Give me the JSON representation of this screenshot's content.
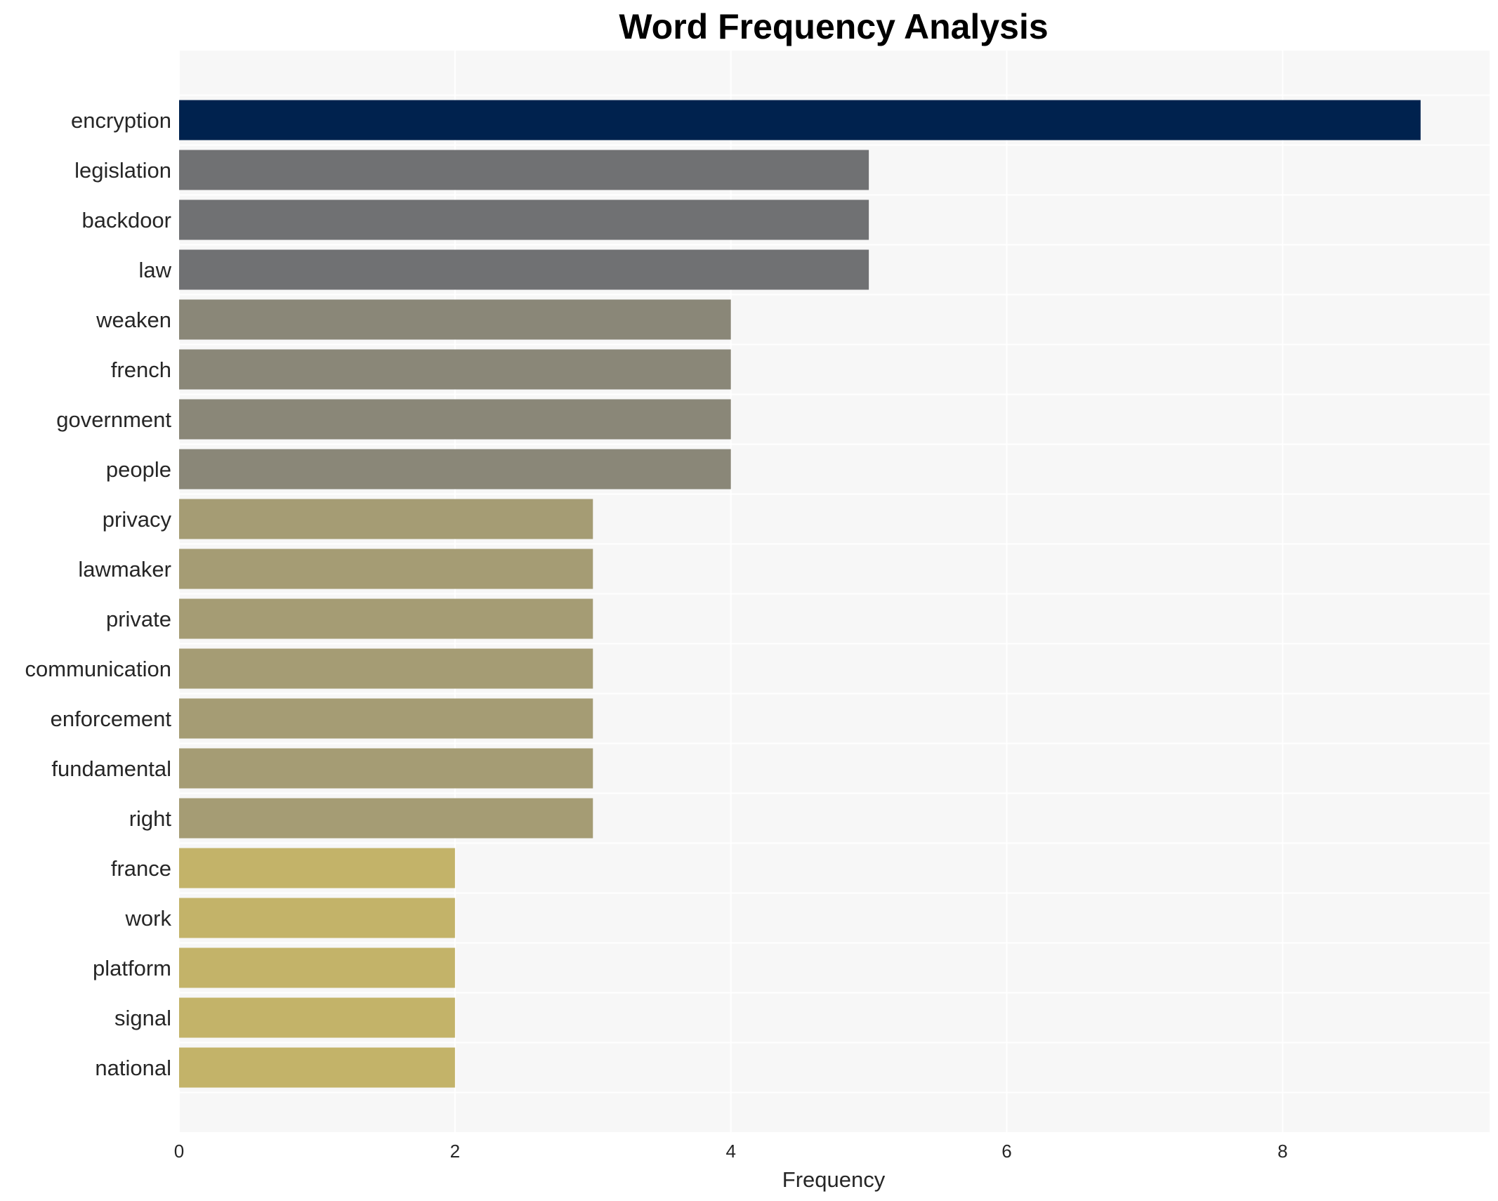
{
  "chart_data": {
    "type": "bar",
    "orientation": "horizontal",
    "title": "Word Frequency Analysis",
    "xlabel": "Frequency",
    "ylabel": "",
    "xlim": [
      0,
      9.5
    ],
    "xticks": [
      0,
      2,
      4,
      6,
      8
    ],
    "grid": true,
    "categories": [
      "encryption",
      "legislation",
      "backdoor",
      "law",
      "weaken",
      "french",
      "government",
      "people",
      "privacy",
      "lawmaker",
      "private",
      "communication",
      "enforcement",
      "fundamental",
      "right",
      "france",
      "work",
      "platform",
      "signal",
      "national"
    ],
    "values": [
      9,
      5,
      5,
      5,
      4,
      4,
      4,
      4,
      3,
      3,
      3,
      3,
      3,
      3,
      3,
      2,
      2,
      2,
      2,
      2
    ],
    "colors": {
      "9": "#00224e",
      "5": "#707173",
      "4": "#8a8778",
      "3": "#a59c74",
      "2": "#c3b369"
    },
    "plot_background": "#f7f7f7",
    "grid_color": "#ffffff"
  }
}
